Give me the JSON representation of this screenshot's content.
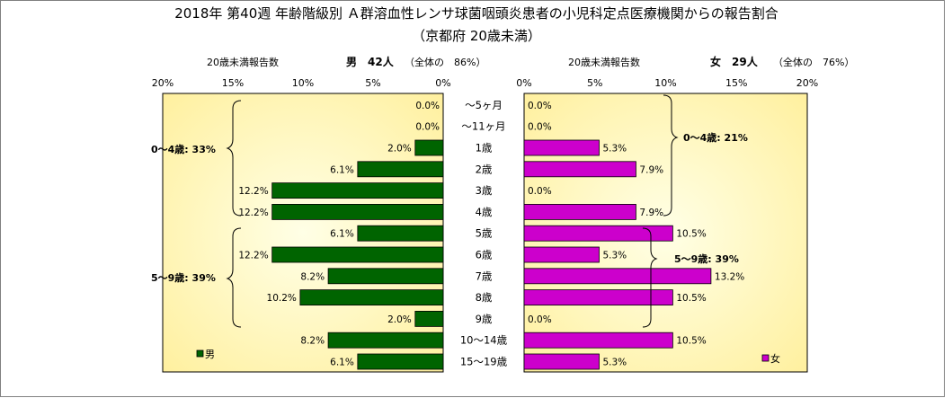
{
  "title": "2018年 第40週 年齢階級別 Ａ群溶血性レンサ球菌咽頭炎患者の小児科定点医療機関からの報告割合",
  "subtitle": "（京都府 20歳未満）",
  "male_panel": {
    "header": "20歳未満報告数",
    "sex_count": "男　42人",
    "share": "（全体の　86%）",
    "ticks": [
      "20%",
      "15%",
      "10%",
      "5%",
      "0%"
    ],
    "legend": "男",
    "color": "#006400"
  },
  "female_panel": {
    "header": "20歳未満報告数",
    "sex_count": "女　29人",
    "share": "（全体の　76%）",
    "ticks": [
      "0%",
      "5%",
      "10%",
      "15%",
      "20%"
    ],
    "legend": "女",
    "color": "#CC00CC"
  },
  "groups": {
    "male_0_4": "0～4歳: 33%",
    "male_5_9": "5～9歳: 39%",
    "female_0_4": "0～4歳: 21%",
    "female_5_9": "5～9歳: 39%"
  },
  "chart_data": {
    "type": "bar",
    "orientation": "horizontal",
    "layout": "population-pyramid",
    "categories": [
      "～5ヶ月",
      "～11ヶ月",
      "1歳",
      "2歳",
      "3歳",
      "4歳",
      "5歳",
      "6歳",
      "7歳",
      "8歳",
      "9歳",
      "10～14歳",
      "15～19歳"
    ],
    "series": [
      {
        "name": "男",
        "values": [
          0.0,
          0.0,
          2.0,
          6.1,
          12.2,
          12.2,
          6.1,
          12.2,
          8.2,
          10.2,
          2.0,
          8.2,
          6.1
        ]
      },
      {
        "name": "女",
        "values": [
          0.0,
          0.0,
          5.3,
          7.9,
          0.0,
          7.9,
          10.5,
          5.3,
          13.2,
          10.5,
          0.0,
          10.5,
          5.3
        ]
      }
    ],
    "value_labels": {
      "男": [
        "0.0%",
        "0.0%",
        "2.0%",
        "6.1%",
        "12.2%",
        "12.2%",
        "6.1%",
        "12.2%",
        "8.2%",
        "10.2%",
        "2.0%",
        "8.2%",
        "6.1%"
      ],
      "女": [
        "0.0%",
        "0.0%",
        "5.3%",
        "7.9%",
        "0.0%",
        "7.9%",
        "10.5%",
        "5.3%",
        "13.2%",
        "10.5%",
        "0.0%",
        "10.5%",
        "5.3%"
      ]
    },
    "xlim": [
      0,
      20
    ],
    "x_unit": "%",
    "grid": false,
    "legend_placement": "bottom-left / bottom-right"
  }
}
